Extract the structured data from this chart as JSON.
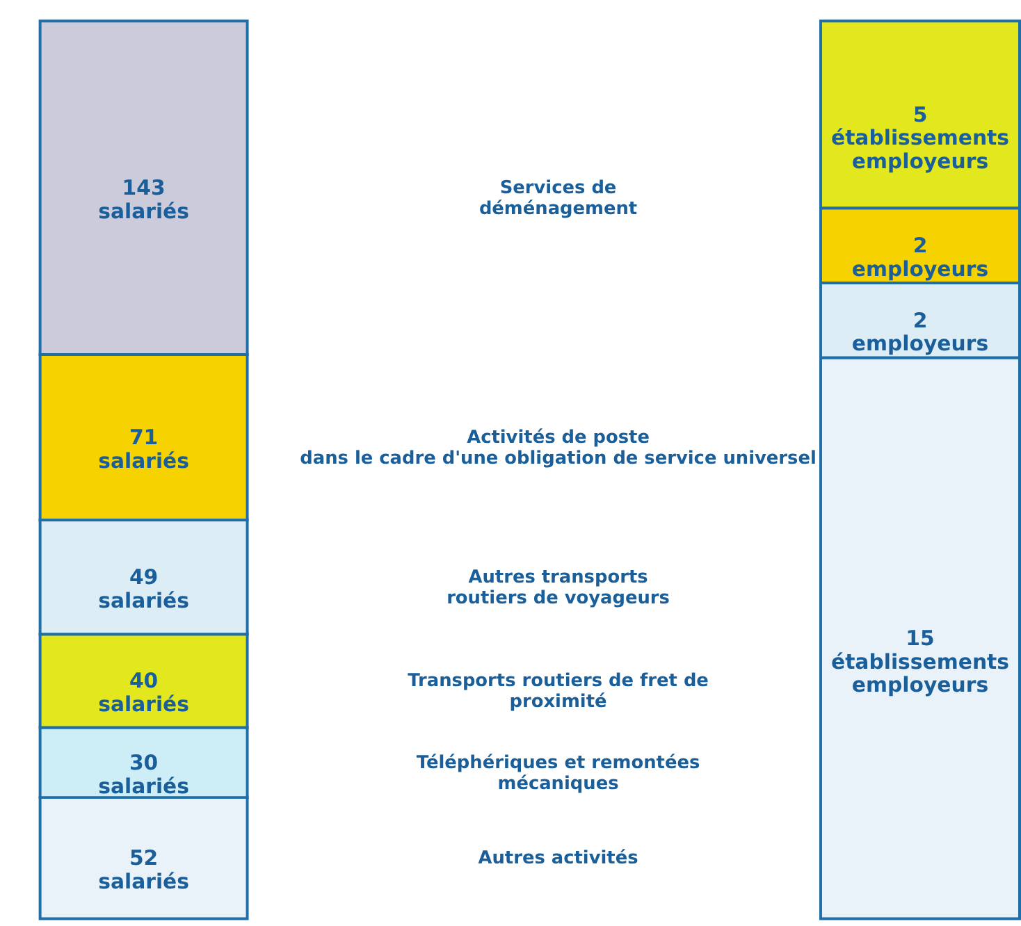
{
  "chart_data": [
    {
      "type": "bar",
      "stacked": true,
      "categories": [
        null
      ],
      "legend": false,
      "series": [
        {
          "name": "Autres activités",
          "color": "#e8f2f8",
          "values": [
            52
          ],
          "value_labels": [
            "52 salariés"
          ]
        },
        {
          "name": "Téléphériques et remontées\nmécaniques",
          "color": "#cdeef6",
          "values": [
            30
          ],
          "value_labels": [
            "30 salariés"
          ]
        },
        {
          "name": "Transports routiers de fret de\nproximité",
          "color": "#e3e81e",
          "values": [
            40
          ],
          "value_labels": [
            "40 salariés"
          ]
        },
        {
          "name": "Autres transports\nroutiers de voyageurs",
          "color": "#dcedf5",
          "values": [
            49
          ],
          "value_labels": [
            "49 salariés"
          ]
        },
        {
          "name": "Activités de poste\ndans le cadre d'une obligation de service universel",
          "color": "#f5d200",
          "values": [
            71
          ],
          "value_labels": [
            "71 salariés"
          ]
        },
        {
          "name": "Services de\ndéménagement",
          "color": "#cccbdb",
          "values": [
            143
          ],
          "value_labels": [
            "143 salariés"
          ]
        }
      ]
    },
    {
      "type": "bar",
      "stacked": true,
      "categories": [
        null
      ],
      "legend": false,
      "series": [
        {
          "color": "#e8f2f8",
          "values": [
            15
          ],
          "value_labels": [
            "15 établissements employeurs"
          ]
        },
        {
          "color": "#dcedf5",
          "values": [
            2
          ],
          "value_labels": [
            "2 employeurs"
          ]
        },
        {
          "color": "#f5d200",
          "values": [
            2
          ],
          "value_labels": [
            "2 employeurs"
          ]
        },
        {
          "color": "#e3e81e",
          "values": [
            5
          ],
          "value_labels": [
            "5 établissements employeurs"
          ]
        }
      ]
    }
  ]
}
